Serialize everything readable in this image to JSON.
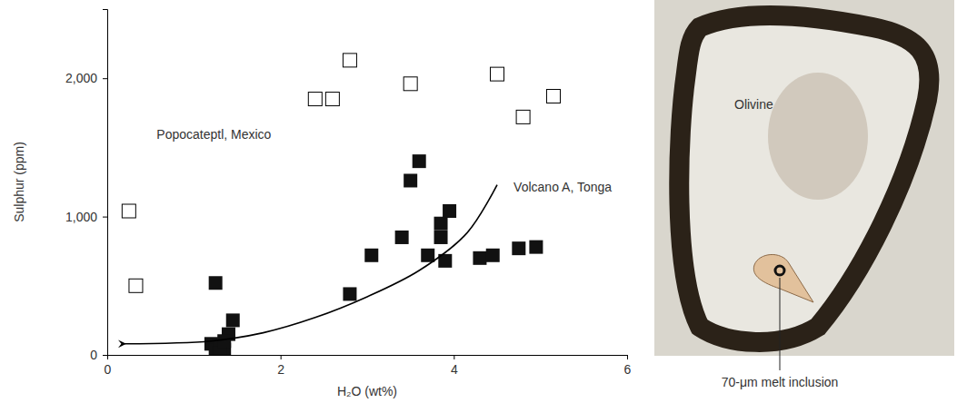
{
  "chart_data": {
    "type": "scatter",
    "x_label": "H₂O (wt%)",
    "y_label": "Sulphur (ppm)",
    "xlim": [
      0,
      6
    ],
    "ylim": [
      0,
      2500
    ],
    "xticks": [
      0,
      2,
      4,
      6
    ],
    "yticks": [
      0,
      {
        "value": 1000,
        "label": "1,000"
      },
      {
        "value": 2000,
        "label": "2,000"
      }
    ],
    "series": [
      {
        "name": "Popocateptl, Mexico",
        "type": "scatter",
        "marker": "square-open",
        "color": "#000000",
        "x": [
          0.25,
          0.33,
          2.4,
          2.6,
          2.8,
          3.5,
          4.5,
          4.8,
          5.15
        ],
        "values": [
          1040,
          500,
          1850,
          1850,
          2130,
          1960,
          2030,
          1720,
          1870
        ]
      },
      {
        "name": "Volcano A, Tonga",
        "type": "scatter",
        "marker": "square",
        "color": "#111111",
        "x": [
          1.25,
          1.2,
          1.25,
          1.3,
          1.35,
          1.4,
          1.45,
          1.3,
          1.35,
          2.8,
          3.05,
          3.4,
          3.5,
          3.6,
          3.7,
          3.85,
          3.85,
          3.9,
          3.95,
          4.3,
          4.45,
          4.75,
          4.95
        ],
        "values": [
          520,
          80,
          30,
          60,
          40,
          150,
          250,
          10,
          100,
          440,
          720,
          850,
          1260,
          1400,
          720,
          850,
          950,
          680,
          1040,
          700,
          720,
          770,
          780
        ]
      },
      {
        "type": "line",
        "marker": "arrow",
        "line_style": "solid",
        "color": "#000000",
        "x": [
          4.5,
          4.15,
          3.6,
          3.0,
          2.4,
          1.8,
          1.2,
          0.2
        ],
        "values": [
          1230,
          880,
          610,
          420,
          270,
          160,
          100,
          80
        ]
      }
    ]
  },
  "photo": {
    "label": "Olivine",
    "callout": "70-μm melt inclusion"
  }
}
